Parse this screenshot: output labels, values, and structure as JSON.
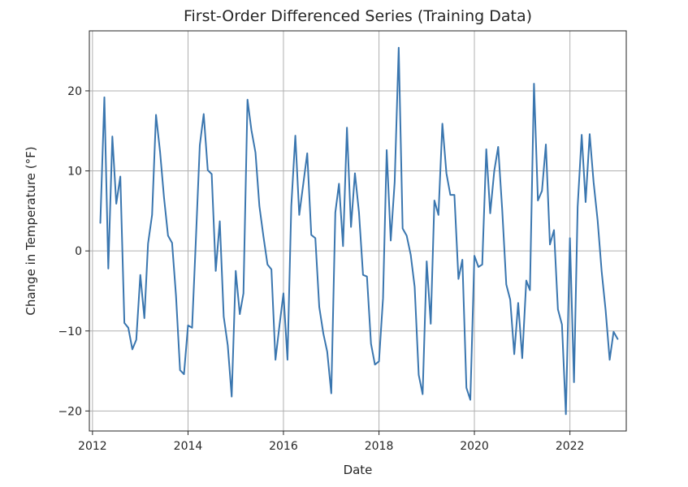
{
  "chart_data": {
    "type": "line",
    "title": "First-Order Differenced Series (Training Data)",
    "xlabel": "Date",
    "ylabel": "Change in Temperature (°F)",
    "xlim": [
      "2011-12-08",
      "2023-03-08"
    ],
    "ylim": [
      -22.5,
      27.5
    ],
    "x_ticks": [
      {
        "value": "2012-01-01",
        "label": "2012"
      },
      {
        "value": "2014-01-01",
        "label": "2014"
      },
      {
        "value": "2016-01-01",
        "label": "2016"
      },
      {
        "value": "2018-01-01",
        "label": "2018"
      },
      {
        "value": "2020-01-01",
        "label": "2020"
      },
      {
        "value": "2022-01-01",
        "label": "2022"
      }
    ],
    "y_ticks": [
      {
        "value": 20,
        "label": "20"
      },
      {
        "value": 10,
        "label": "10"
      },
      {
        "value": 0,
        "label": "0"
      },
      {
        "value": -10,
        "label": "−10"
      },
      {
        "value": -20,
        "label": "−20"
      }
    ],
    "grid": true,
    "line_color": "#3a76af",
    "series": [
      {
        "x": [
          "2012-03-01",
          "2012-04-01",
          "2012-05-01",
          "2012-06-01",
          "2012-07-01",
          "2012-08-01",
          "2012-09-01",
          "2012-10-01",
          "2012-11-01",
          "2012-12-01",
          "2013-01-01",
          "2013-02-01",
          "2013-03-01",
          "2013-04-01",
          "2013-05-01",
          "2013-06-01",
          "2013-07-01",
          "2013-08-01",
          "2013-09-01",
          "2013-10-01",
          "2013-11-01",
          "2013-12-01",
          "2014-01-01",
          "2014-02-01",
          "2014-03-01",
          "2014-04-01",
          "2014-05-01",
          "2014-06-01",
          "2014-07-01",
          "2014-08-01",
          "2014-09-01",
          "2014-10-01",
          "2014-11-01",
          "2014-12-01",
          "2015-01-01",
          "2015-02-01",
          "2015-03-01",
          "2015-04-01",
          "2015-05-01",
          "2015-06-01",
          "2015-07-01",
          "2015-08-01",
          "2015-09-01",
          "2015-10-01",
          "2015-11-01",
          "2015-12-01",
          "2016-01-01",
          "2016-02-01",
          "2016-03-01",
          "2016-04-01",
          "2016-05-01",
          "2016-06-01",
          "2016-07-01",
          "2016-08-01",
          "2016-09-01",
          "2016-10-01",
          "2016-11-01",
          "2016-12-01",
          "2017-01-01",
          "2017-02-01",
          "2017-03-01",
          "2017-04-01",
          "2017-05-01",
          "2017-06-01",
          "2017-07-01",
          "2017-08-01",
          "2017-09-01",
          "2017-10-01",
          "2017-11-01",
          "2017-12-01",
          "2018-01-01",
          "2018-02-01",
          "2018-03-01",
          "2018-04-01",
          "2018-05-01",
          "2018-06-01",
          "2018-07-01",
          "2018-08-01",
          "2018-09-01",
          "2018-10-01",
          "2018-11-01",
          "2018-12-01",
          "2019-01-01",
          "2019-02-01",
          "2019-03-01",
          "2019-04-01",
          "2019-05-01",
          "2019-06-01",
          "2019-07-01",
          "2019-08-01",
          "2019-09-01",
          "2019-10-01",
          "2019-11-01",
          "2019-12-01",
          "2020-01-01",
          "2020-02-01",
          "2020-03-01",
          "2020-04-01",
          "2020-05-01",
          "2020-06-01",
          "2020-07-01",
          "2020-08-01",
          "2020-09-01",
          "2020-10-01",
          "2020-11-01",
          "2020-12-01",
          "2021-01-01",
          "2021-02-01",
          "2021-03-01",
          "2021-04-01",
          "2021-05-01",
          "2021-06-01",
          "2021-07-01",
          "2021-08-01",
          "2021-09-01",
          "2021-10-01",
          "2021-11-01",
          "2021-12-01",
          "2022-01-01",
          "2022-02-01",
          "2022-03-01",
          "2022-04-01",
          "2022-05-01",
          "2022-06-01",
          "2022-07-01",
          "2022-08-01",
          "2022-09-01",
          "2022-10-01",
          "2022-11-01",
          "2022-12-01",
          "2023-01-01"
        ],
        "values": [
          3.5,
          19.2,
          -2.2,
          14.3,
          5.9,
          9.3,
          -9.0,
          -9.6,
          -12.3,
          -11.1,
          -3.0,
          -8.4,
          0.9,
          4.5,
          17.0,
          12.4,
          6.7,
          1.9,
          1.0,
          -5.6,
          -14.9,
          -15.4,
          -9.3,
          -9.6,
          1.0,
          13.2,
          17.1,
          10.1,
          9.6,
          -2.5,
          3.7,
          -8.2,
          -11.8,
          -18.2,
          -2.5,
          -7.9,
          -5.3,
          18.9,
          15.1,
          12.3,
          5.6,
          1.8,
          -1.7,
          -2.3,
          -13.6,
          -9.4,
          -5.3,
          -13.6,
          5.6,
          14.4,
          4.5,
          8.4,
          12.2,
          2.0,
          1.6,
          -7.0,
          -10.3,
          -12.6,
          -17.8,
          4.8,
          8.4,
          0.6,
          15.4,
          3.0,
          9.7,
          4.8,
          -3.0,
          -3.2,
          -11.6,
          -14.2,
          -13.8,
          -5.9,
          12.6,
          1.3,
          8.6,
          25.4,
          2.8,
          1.9,
          -0.5,
          -4.5,
          -15.5,
          -17.9,
          -1.3,
          -9.1,
          6.3,
          4.5,
          15.9,
          9.7,
          7.0,
          7.0,
          -3.5,
          -1.1,
          -17.1,
          -18.6,
          -0.6,
          -2.0,
          -1.7,
          12.7,
          4.7,
          10.0,
          13.0,
          5.1,
          -4.2,
          -6.1,
          -12.9,
          -6.5,
          -13.4,
          -3.7,
          -4.9,
          20.9,
          6.3,
          7.5,
          13.3,
          0.8,
          2.6,
          -7.3,
          -9.2,
          -20.4,
          1.6,
          -16.4,
          5.5,
          14.5,
          6.1,
          14.6,
          8.6,
          3.8,
          -2.6,
          -7.4,
          -13.6,
          -10.1,
          -11.0
        ]
      }
    ]
  }
}
